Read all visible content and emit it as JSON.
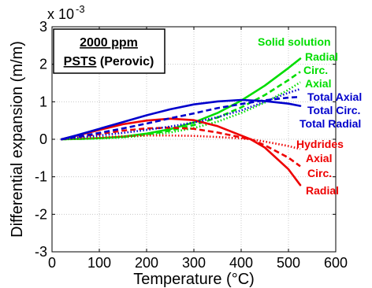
{
  "chart_data": {
    "type": "line",
    "xlabel": "Temperature (°C)",
    "ylabel": "Differential expansion (m/m)",
    "xlim": [
      0,
      600
    ],
    "ylim": [
      -0.003,
      0.003
    ],
    "y_multiplier_base": "x 10",
    "y_multiplier_exp": "-3",
    "x_ticks": [
      0,
      100,
      200,
      300,
      400,
      500,
      600
    ],
    "x_tick_labels": [
      "0",
      "100",
      "200",
      "300",
      "400",
      "500",
      "600"
    ],
    "y_ticks": [
      -0.003,
      -0.002,
      -0.001,
      0,
      0.001,
      0.002,
      0.003
    ],
    "y_tick_labels": [
      "-3",
      "-2",
      "-1",
      "0",
      "1",
      "2",
      "3"
    ],
    "grid": true,
    "box": {
      "line1": "2000 ppm",
      "line2_underlined": "PSTS",
      "line2_rest": " (Perovic)"
    },
    "group_labels": [
      {
        "text": "Solid solution",
        "color": "#00dd00"
      },
      {
        "text": "Hydrides",
        "color": "#ee0000"
      }
    ],
    "colors": {
      "solid_solution": "#00dd00",
      "hydrides": "#ee0000",
      "total": "#0000cc"
    },
    "series": [
      {
        "name": "Radial",
        "group": "solid_solution",
        "color": "#00dd00",
        "dash": "solid",
        "x": [
          20,
          60,
          100,
          150,
          200,
          250,
          300,
          350,
          400,
          450,
          500,
          525
        ],
        "y": [
          0,
          1e-05,
          3e-05,
          7e-05,
          0.00015,
          0.00027,
          0.00045,
          0.0007,
          0.00103,
          0.00143,
          0.0019,
          0.00215
        ]
      },
      {
        "name": "Circ.",
        "group": "solid_solution",
        "color": "#00dd00",
        "dash": "dashed",
        "x": [
          20,
          60,
          100,
          150,
          200,
          250,
          300,
          350,
          400,
          450,
          500,
          525
        ],
        "y": [
          0,
          1e-05,
          3e-05,
          6e-05,
          0.00013,
          0.00023,
          0.00038,
          0.00058,
          0.00085,
          0.00118,
          0.00158,
          0.0018
        ]
      },
      {
        "name": "Axial",
        "group": "solid_solution",
        "color": "#00dd00",
        "dash": "dotted",
        "x": [
          20,
          60,
          100,
          150,
          200,
          250,
          300,
          350,
          400,
          450,
          500,
          525
        ],
        "y": [
          0,
          1e-05,
          2e-05,
          5e-05,
          0.0001,
          0.00018,
          0.0003,
          0.00047,
          0.0007,
          0.00098,
          0.00132,
          0.00152
        ]
      },
      {
        "name": "Radial",
        "group": "hydrides",
        "color": "#ee0000",
        "dash": "solid",
        "x": [
          20,
          50,
          100,
          150,
          200,
          250,
          300,
          350,
          400,
          420,
          450,
          500,
          525
        ],
        "y": [
          0,
          9e-05,
          0.00025,
          0.0004,
          0.0005,
          0.00055,
          0.00051,
          0.00035,
          0.0001,
          0,
          -0.00022,
          -0.0008,
          -0.00122
        ]
      },
      {
        "name": "Circ.",
        "group": "hydrides",
        "color": "#ee0000",
        "dash": "dashed",
        "x": [
          20,
          50,
          100,
          150,
          200,
          250,
          300,
          350,
          400,
          420,
          450,
          500,
          525
        ],
        "y": [
          0,
          5e-05,
          0.00014,
          0.00023,
          0.00029,
          0.00031,
          0.00028,
          0.00018,
          5e-05,
          0,
          -0.00016,
          -0.00049,
          -0.00072
        ]
      },
      {
        "name": "Axial",
        "group": "hydrides",
        "color": "#ee0000",
        "dash": "dotted",
        "x": [
          20,
          50,
          100,
          150,
          200,
          250,
          300,
          350,
          400,
          420,
          450,
          500,
          525
        ],
        "y": [
          0,
          2e-05,
          5e-05,
          8e-05,
          0.0001,
          0.0001,
          9e-05,
          6e-05,
          2e-05,
          0,
          -6e-05,
          -0.00018,
          -0.00026
        ]
      },
      {
        "name": "Total Axial",
        "group": "total",
        "color": "#0000cc",
        "dash": "dotted",
        "x": [
          20,
          50,
          100,
          150,
          200,
          250,
          300,
          350,
          400,
          450,
          500,
          525
        ],
        "y": [
          0,
          4e-05,
          0.0001,
          0.00017,
          0.00025,
          0.00034,
          0.00045,
          0.00059,
          0.00077,
          0.001,
          0.00124,
          0.00134
        ]
      },
      {
        "name": "Total Circ.",
        "group": "total",
        "color": "#0000cc",
        "dash": "dashed",
        "x": [
          20,
          50,
          100,
          150,
          200,
          250,
          300,
          350,
          400,
          450,
          500,
          525
        ],
        "y": [
          0,
          6e-05,
          0.00017,
          0.00029,
          0.00042,
          0.00056,
          0.00069,
          0.00083,
          0.00094,
          0.00104,
          0.00111,
          0.00113
        ]
      },
      {
        "name": "Total Radial",
        "group": "total",
        "color": "#0000cc",
        "dash": "solid",
        "x": [
          20,
          50,
          100,
          150,
          200,
          250,
          300,
          350,
          400,
          450,
          500,
          525
        ],
        "y": [
          0,
          0.0001,
          0.00028,
          0.00046,
          0.00064,
          0.0008,
          0.00093,
          0.00101,
          0.00105,
          0.00102,
          0.00095,
          0.00089
        ]
      }
    ]
  }
}
